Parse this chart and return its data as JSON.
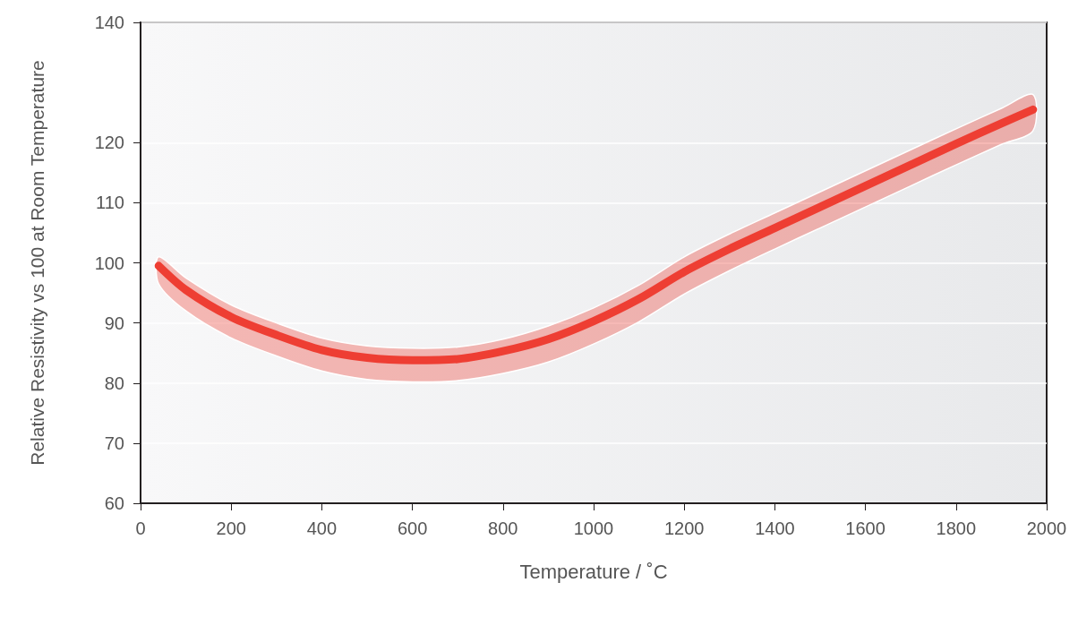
{
  "chart_data": {
    "type": "line",
    "xlabel": "Temperature / ˚C",
    "ylabel": "Relative Resistivity vs 100 at Room Temperature",
    "x": [
      40,
      100,
      200,
      300,
      400,
      500,
      600,
      700,
      800,
      900,
      1000,
      1100,
      1200,
      1300,
      1400,
      1500,
      1600,
      1700,
      1800,
      1900,
      1970
    ],
    "series": [
      {
        "color": "#ee3e33",
        "values": [
          99.5,
          95.5,
          91,
          88,
          85.5,
          84.2,
          83.8,
          84,
          85.3,
          87.3,
          90.3,
          94,
          98.5,
          102.3,
          105.8,
          109.3,
          112.8,
          116.3,
          119.8,
          123.2,
          125.5
        ],
        "upper": [
          101,
          97.5,
          93,
          90,
          87.5,
          86.2,
          85.8,
          86,
          87.3,
          89.5,
          92.5,
          96.3,
          101,
          104.8,
          108.3,
          111.8,
          115.3,
          118.8,
          122.3,
          125.7,
          128
        ],
        "lower": [
          96.5,
          92,
          87.5,
          84.5,
          82,
          80.6,
          80.2,
          80.4,
          81.6,
          83.5,
          86.5,
          90.2,
          94.8,
          98.7,
          102.3,
          105.8,
          109.3,
          112.8,
          116.3,
          119.7,
          122
        ]
      }
    ],
    "xlim": [
      0,
      2000
    ],
    "xticks": [
      0,
      200,
      400,
      600,
      800,
      1000,
      1200,
      1400,
      1600,
      1800,
      2000
    ],
    "ylim": [
      60,
      140
    ],
    "yticks": [
      60,
      70,
      80,
      90,
      100,
      110,
      120,
      140
    ],
    "grid": "y",
    "line_style": "solid"
  }
}
